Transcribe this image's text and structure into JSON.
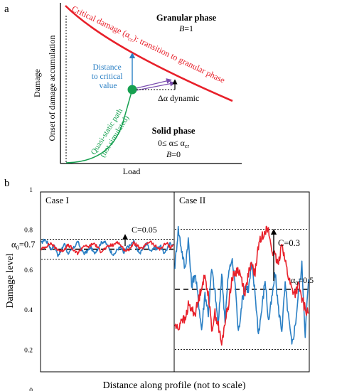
{
  "colors": {
    "red": "#e8202a",
    "blue": "#2a7fc4",
    "green": "#16a050",
    "purple": "#7b4fb0",
    "black": "#000000"
  },
  "panel_a": {
    "label": "a",
    "xlabel": "Load",
    "ylabel": "Damage",
    "onset_label": "Onset of damage accumulation",
    "critical_label_parts": [
      "Critical damage (α",
      "cr",
      "): transition to granular phase"
    ],
    "quasi_label_line1": "Quasi-static path",
    "quasi_label_line2": "(not simulated)",
    "granular_title": "Granular phase",
    "granular_b": "B",
    "granular_b_val": "=1",
    "solid_title": "Solid phase",
    "solid_range_parts": [
      "0≤ α≤ α",
      "cr"
    ],
    "solid_b": "B",
    "solid_b_val": "=0",
    "distance_label": [
      "Distance",
      "to critical",
      "value"
    ],
    "delta_label": "Δα dynamic"
  },
  "panel_b": {
    "label": "b",
    "ylabel": "Damage level",
    "xlabel": "Distance along profile (not to scale)",
    "case1": {
      "title": "Case I",
      "c_label": "C=0.05",
      "alpha_label": "α",
      "alpha_sub": "0",
      "alpha_val": "=0.7"
    },
    "case2": {
      "title": "Case II",
      "c_label": "C=0.3",
      "alpha_label": "α",
      "alpha_sub": "0",
      "alpha_val": "=0.5"
    }
  },
  "chart_data": {
    "type": "line",
    "ylabel": "Damage level",
    "xlabel": "Distance along profile (not to scale)",
    "ylim": [
      0,
      1
    ],
    "yticks": [
      "0",
      "0.2",
      "0.4",
      "0.6",
      "0.8",
      "1"
    ],
    "panels": [
      {
        "title": "Case I",
        "alpha0": 0.7,
        "C": 0.05,
        "bounds": [
          0.65,
          0.75
        ],
        "series": [
          {
            "color": "#2a7fc4",
            "values": [
              0.73,
              0.75,
              0.73,
              0.7,
              0.72,
              0.67,
              0.69,
              0.73,
              0.68,
              0.69,
              0.71,
              0.74,
              0.7,
              0.68,
              0.69,
              0.71,
              0.68,
              0.7,
              0.73,
              0.74,
              0.72,
              0.69,
              0.67,
              0.7,
              0.71,
              0.68,
              0.71,
              0.72,
              0.74,
              0.7,
              0.68,
              0.71,
              0.73,
              0.69,
              0.71,
              0.7,
              0.72,
              0.68,
              0.7,
              0.73,
              0.72
            ]
          },
          {
            "color": "#e8202a",
            "values": [
              0.7,
              0.71,
              0.72,
              0.73,
              0.71,
              0.7,
              0.69,
              0.7,
              0.72,
              0.71,
              0.69,
              0.68,
              0.7,
              0.72,
              0.71,
              0.72,
              0.73,
              0.71,
              0.69,
              0.7,
              0.71,
              0.72,
              0.72,
              0.74,
              0.72,
              0.7,
              0.69,
              0.71,
              0.73,
              0.72,
              0.7,
              0.71,
              0.73,
              0.74,
              0.72,
              0.71,
              0.7,
              0.72,
              0.73,
              0.71,
              0.72
            ]
          }
        ]
      },
      {
        "title": "Case II",
        "alpha0": 0.5,
        "C": 0.3,
        "bounds": [
          0.2,
          0.8
        ],
        "series": [
          {
            "color": "#2a7fc4",
            "values": [
              0.62,
              0.8,
              0.7,
              0.6,
              0.75,
              0.52,
              0.58,
              0.45,
              0.3,
              0.48,
              0.38,
              0.6,
              0.48,
              0.32,
              0.58,
              0.35,
              0.57,
              0.65,
              0.54,
              0.28,
              0.43,
              0.52,
              0.5,
              0.62,
              0.48,
              0.28,
              0.4,
              0.55,
              0.34,
              0.45,
              0.58,
              0.4,
              0.3,
              0.52,
              0.36,
              0.22,
              0.32,
              0.48,
              0.62,
              0.28,
              0.55
            ]
          },
          {
            "color": "#e8202a",
            "values": [
              0.32,
              0.3,
              0.36,
              0.34,
              0.42,
              0.4,
              0.38,
              0.44,
              0.52,
              0.56,
              0.48,
              0.3,
              0.38,
              0.32,
              0.22,
              0.34,
              0.42,
              0.55,
              0.58,
              0.6,
              0.55,
              0.48,
              0.58,
              0.62,
              0.58,
              0.72,
              0.76,
              0.8,
              0.79,
              0.7,
              0.66,
              0.62,
              0.74,
              0.64,
              0.56,
              0.5,
              0.48,
              0.52,
              0.45,
              0.4,
              0.38
            ]
          }
        ]
      }
    ]
  }
}
